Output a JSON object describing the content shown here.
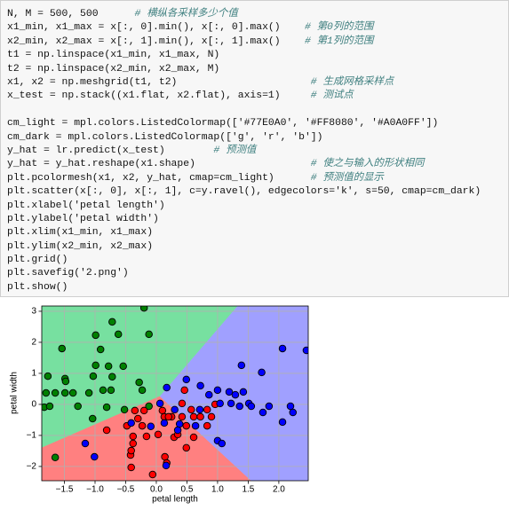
{
  "code_blocks": [
    [
      {
        "code": "N, M = 500, 500      ",
        "comment": "# 横纵各采样多少个值"
      },
      {
        "code": "x1_min, x1_max = x[:, 0].min(), x[:, 0].max()    ",
        "comment": "# 第0列的范围"
      },
      {
        "code": "x2_min, x2_max = x[:, 1].min(), x[:, 1].max()    ",
        "comment": "# 第1列的范围"
      },
      {
        "code": "t1 = np.linspace(x1_min, x1_max, N)"
      },
      {
        "code": "t2 = np.linspace(x2_min, x2_max, M)"
      },
      {
        "code": "x1, x2 = np.meshgrid(t1, t2)                      ",
        "comment": "# 生成网格采样点"
      },
      {
        "code": "x_test = np.stack((x1.flat, x2.flat), axis=1)     ",
        "comment": "# 测试点"
      }
    ],
    [
      {
        "code": "cm_light = mpl.colors.ListedColormap(['#77E0A0', '#FF8080', '#A0A0FF'])"
      },
      {
        "code": "cm_dark = mpl.colors.ListedColormap(['g', 'r', 'b'])"
      },
      {
        "code": "y_hat = lr.predict(x_test)        ",
        "comment": "# 预测值"
      },
      {
        "code": "y_hat = y_hat.reshape(x1.shape)                   ",
        "comment": "# 使之与输入的形状相同"
      },
      {
        "code": "plt.pcolormesh(x1, x2, y_hat, cmap=cm_light)      ",
        "comment": "# 预测值的显示"
      },
      {
        "code": "plt.scatter(x[:, 0], x[:, 1], c=y.ravel(), edgecolors='k', s=50, cmap=cm_dark)"
      },
      {
        "code": "plt.xlabel('petal length')"
      },
      {
        "code": "plt.ylabel('petal width')"
      },
      {
        "code": "plt.xlim(x1_min, x1_max)"
      },
      {
        "code": "plt.ylim(x2_min, x2_max)"
      },
      {
        "code": "plt.grid()"
      },
      {
        "code": "plt.savefig('2.png')"
      },
      {
        "code": "plt.show()"
      }
    ]
  ],
  "chart_data": {
    "type": "scatter",
    "xlabel": "petal length",
    "ylabel": "petal width",
    "xlim": [
      -1.87,
      2.48
    ],
    "ylim": [
      -2.46,
      3.17
    ],
    "xticks": [
      {
        "value": -1.5,
        "label": "−1.5"
      },
      {
        "value": -1.0,
        "label": "−1.0"
      },
      {
        "value": -0.5,
        "label": "−0.5"
      },
      {
        "value": 0,
        "label": "0.0"
      },
      {
        "value": 0.5,
        "label": "0.5"
      },
      {
        "value": 1.0,
        "label": "1.0"
      },
      {
        "value": 1.5,
        "label": "1.5"
      },
      {
        "value": 2.0,
        "label": "2.0"
      }
    ],
    "yticks": [
      {
        "value": -2,
        "label": "−2"
      },
      {
        "value": -1,
        "label": "−1"
      },
      0,
      1,
      2,
      3
    ],
    "grid": true,
    "edge_color": "#000000",
    "decision_regions": [
      {
        "color": "#77E0A0",
        "x": [
          -1.87,
          1.33,
          0.06,
          -1.87
        ],
        "y": [
          3.17,
          3.17,
          0.26,
          -1.4
        ]
      },
      {
        "color": "#FF8080",
        "x": [
          -1.87,
          0.06,
          1.55,
          -1.87
        ],
        "y": [
          -1.4,
          0.26,
          -2.46,
          -2.46
        ]
      },
      {
        "color": "#A0A0FF",
        "x": [
          1.33,
          2.48,
          2.48,
          1.55,
          0.06
        ],
        "y": [
          3.17,
          3.17,
          -2.46,
          -2.46,
          0.26
        ]
      }
    ],
    "series": [
      {
        "color": "#008000",
        "x": [
          -0.2,
          -0.72,
          -0.99,
          -0.62,
          -0.12,
          -1.54,
          -0.91,
          -0.99,
          -0.54,
          -1.77,
          -1.49,
          -1.03,
          -0.78,
          -0.72,
          -0.28,
          -1.8,
          -1.65,
          -1.49,
          -1.36,
          -0.87,
          -0.74,
          -0.23,
          -1.28,
          -1.83,
          -1.74,
          -0.52,
          -0.12,
          -1.04,
          -1.1,
          -1.65,
          -0.81,
          -1.48
        ],
        "y": [
          3.11,
          2.66,
          2.23,
          2.26,
          2.26,
          1.8,
          1.77,
          1.26,
          1.23,
          0.91,
          0.83,
          0.91,
          1.23,
          0.89,
          0.71,
          0.37,
          0.37,
          0.37,
          0.37,
          0.46,
          0.46,
          0.46,
          -0.06,
          -0.09,
          -0.06,
          -0.17,
          -0.06,
          -0.46,
          0.37,
          -1.71,
          -0.09,
          0.74
        ]
      },
      {
        "color": "#FF0000",
        "x": [
          -0.2,
          -0.3,
          -0.23,
          -0.48,
          -0.16,
          -0.38,
          0.1,
          0.13,
          0.25,
          0.42,
          0.61,
          0.72,
          0.9,
          0.49,
          0.83,
          0.29,
          0.61,
          -0.38,
          -0.42,
          -0.41,
          0.14,
          0.17,
          0.35,
          -0.81,
          -0.35,
          0.46,
          0.03,
          0.49,
          0.96,
          0.83,
          -0.41,
          -0.06,
          0.2,
          0.42,
          0.57
        ],
        "y": [
          -0.2,
          -0.46,
          -0.69,
          -0.69,
          -1.03,
          -1.03,
          -0.2,
          -0.4,
          -0.4,
          -0.4,
          -0.4,
          -0.4,
          -0.4,
          -0.69,
          -0.69,
          -1.06,
          -1.06,
          -1.26,
          -1.63,
          -2.03,
          -1.69,
          -1.89,
          -0.97,
          -0.83,
          -0.2,
          0.46,
          -0.97,
          -1.4,
          0.0,
          -0.17,
          -1.49,
          -2.26,
          -0.4,
          0.03,
          -0.17
        ]
      },
      {
        "color": "#0000FF",
        "x": [
          0.17,
          0.49,
          0.72,
          0.86,
          1.0,
          1.19,
          1.29,
          1.04,
          1.22,
          1.42,
          1.51,
          1.74,
          2.19,
          2.23,
          2.06,
          2.45,
          2.06,
          1.72,
          1.39,
          0.3,
          0.13,
          -0.09,
          0.38,
          0.64,
          1.0,
          1.36,
          1.55,
          1.84,
          0.06,
          0.71,
          -0.41,
          -1.16,
          -1.01,
          0.16,
          0.35,
          1.07
        ],
        "y": [
          0.54,
          0.8,
          0.6,
          0.31,
          0.46,
          0.4,
          0.31,
          0.03,
          0.03,
          0.4,
          0.03,
          -0.26,
          -0.06,
          -0.26,
          -0.57,
          1.74,
          1.8,
          1.03,
          1.26,
          -0.17,
          -0.6,
          -0.71,
          -0.63,
          -0.69,
          -1.17,
          -0.06,
          -0.06,
          -0.06,
          0.03,
          -0.17,
          -0.6,
          -1.26,
          -1.69,
          -1.97,
          -0.83,
          -1.26
        ]
      }
    ]
  }
}
